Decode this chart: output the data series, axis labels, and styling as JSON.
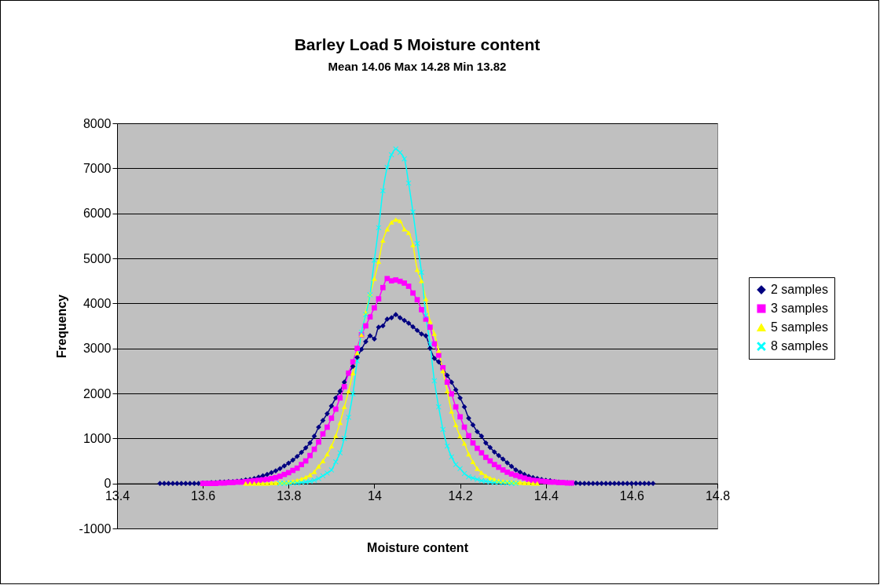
{
  "chart_data": {
    "type": "line",
    "title": "Barley Load 5 Moisture content",
    "subtitle": "Mean 14.06  Max 14.28  Min 13.82",
    "xlabel": "Moisture content",
    "ylabel": "Frequency",
    "x": [
      13.5,
      13.51,
      13.52,
      13.53,
      13.54,
      13.55,
      13.56,
      13.57,
      13.58,
      13.59,
      13.6,
      13.61,
      13.62,
      13.63,
      13.64,
      13.65,
      13.66,
      13.67,
      13.68,
      13.69,
      13.7,
      13.71,
      13.72,
      13.73,
      13.74,
      13.75,
      13.76,
      13.77,
      13.78,
      13.79,
      13.8,
      13.81,
      13.82,
      13.83,
      13.84,
      13.85,
      13.86,
      13.87,
      13.88,
      13.89,
      13.9,
      13.91,
      13.92,
      13.93,
      13.94,
      13.95,
      13.96,
      13.97,
      13.98,
      13.99,
      14,
      14.01,
      14.02,
      14.03,
      14.04,
      14.05,
      14.06,
      14.07,
      14.08,
      14.09,
      14.1,
      14.11,
      14.12,
      14.13,
      14.14,
      14.15,
      14.16,
      14.17,
      14.18,
      14.19,
      14.2,
      14.21,
      14.22,
      14.23,
      14.24,
      14.25,
      14.26,
      14.27,
      14.28,
      14.29,
      14.3,
      14.31,
      14.32,
      14.33,
      14.34,
      14.35,
      14.36,
      14.37,
      14.38,
      14.39,
      14.4,
      14.41,
      14.42,
      14.43,
      14.44,
      14.45,
      14.46,
      14.47,
      14.48,
      14.49,
      14.5,
      14.51,
      14.52,
      14.53,
      14.54,
      14.55,
      14.56,
      14.57,
      14.58,
      14.59,
      14.6,
      14.61,
      14.62,
      14.63,
      14.64,
      14.65
    ],
    "series": [
      {
        "name": "2 samples",
        "color": "#000080",
        "marker": "diamond",
        "values": [
          0,
          0,
          0,
          0,
          0,
          0,
          0,
          0,
          0,
          0,
          10,
          10,
          20,
          20,
          30,
          30,
          40,
          40,
          50,
          60,
          80,
          90,
          110,
          140,
          170,
          200,
          240,
          280,
          330,
          390,
          450,
          520,
          600,
          690,
          790,
          900,
          1050,
          1250,
          1400,
          1550,
          1720,
          1900,
          2050,
          2250,
          2450,
          2600,
          2800,
          2980,
          3150,
          3280,
          3210,
          3470,
          3500,
          3650,
          3680,
          3750,
          3680,
          3620,
          3560,
          3480,
          3400,
          3320,
          3280,
          3000,
          2780,
          2700,
          2550,
          2400,
          2250,
          2080,
          1900,
          1700,
          1450,
          1300,
          1150,
          1050,
          900,
          800,
          700,
          620,
          540,
          460,
          380,
          300,
          250,
          200,
          160,
          130,
          110,
          90,
          70,
          60,
          40,
          30,
          20,
          20,
          10,
          10,
          0,
          0,
          0,
          0,
          0,
          0,
          0,
          0,
          0,
          0,
          0,
          0,
          0,
          0,
          0,
          0,
          0,
          0
        ]
      },
      {
        "name": "3 samples",
        "color": "#ff00ff",
        "marker": "square",
        "values": [
          null,
          null,
          null,
          null,
          null,
          null,
          null,
          null,
          null,
          null,
          0,
          0,
          0,
          0,
          10,
          10,
          20,
          20,
          30,
          30,
          40,
          50,
          60,
          70,
          80,
          90,
          110,
          130,
          160,
          200,
          240,
          290,
          340,
          420,
          500,
          620,
          760,
          920,
          1100,
          1250,
          1450,
          1650,
          1900,
          2150,
          2450,
          2700,
          3000,
          3300,
          3500,
          3700,
          3900,
          4100,
          4350,
          4550,
          4500,
          4520,
          4490,
          4450,
          4380,
          4230,
          4080,
          3860,
          3650,
          3470,
          3100,
          2850,
          2570,
          2250,
          1990,
          1700,
          1480,
          1250,
          1060,
          900,
          780,
          680,
          580,
          500,
          420,
          360,
          300,
          250,
          210,
          180,
          150,
          120,
          90,
          70,
          60,
          50,
          40,
          30,
          30,
          20,
          20,
          10,
          10,
          null,
          null,
          null,
          null,
          null,
          null,
          null,
          null,
          null,
          null,
          null,
          null,
          null,
          null,
          null,
          null,
          null,
          null,
          null
        ]
      },
      {
        "name": "5 samples",
        "color": "#ffff00",
        "marker": "triangle",
        "values": [
          null,
          null,
          null,
          null,
          null,
          null,
          null,
          null,
          null,
          null,
          null,
          null,
          null,
          null,
          null,
          null,
          null,
          null,
          null,
          null,
          0,
          0,
          0,
          0,
          0,
          0,
          10,
          10,
          20,
          20,
          30,
          50,
          70,
          100,
          140,
          190,
          260,
          380,
          500,
          650,
          830,
          1060,
          1350,
          1700,
          2050,
          2450,
          2900,
          3300,
          3800,
          4200,
          4550,
          4930,
          5400,
          5650,
          5800,
          5860,
          5830,
          5650,
          5570,
          5300,
          4750,
          4500,
          4100,
          3600,
          3330,
          2950,
          2500,
          2050,
          1600,
          1300,
          1050,
          890,
          650,
          480,
          330,
          240,
          170,
          120,
          90,
          60,
          50,
          40,
          30,
          20,
          20,
          10,
          10,
          0,
          0,
          null,
          null,
          null,
          null,
          null,
          null,
          null,
          null,
          null,
          null,
          null,
          null,
          null,
          null,
          null,
          null,
          null,
          null,
          null,
          null,
          null,
          null,
          null,
          null,
          null,
          null,
          null
        ]
      },
      {
        "name": "8 samples",
        "color": "#00ffff",
        "marker": "cross",
        "values": [
          null,
          null,
          null,
          null,
          null,
          null,
          null,
          null,
          null,
          null,
          null,
          null,
          null,
          null,
          null,
          null,
          null,
          null,
          null,
          null,
          null,
          null,
          null,
          null,
          null,
          null,
          null,
          null,
          0,
          0,
          0,
          10,
          10,
          20,
          30,
          50,
          70,
          110,
          170,
          230,
          300,
          480,
          680,
          1000,
          1470,
          1990,
          2720,
          3360,
          3750,
          4190,
          4960,
          5680,
          6500,
          7020,
          7300,
          7430,
          7350,
          7210,
          6670,
          6030,
          5330,
          4690,
          3730,
          3090,
          2280,
          1700,
          1200,
          830,
          590,
          420,
          330,
          220,
          150,
          120,
          90,
          60,
          50,
          30,
          20,
          20,
          10,
          10,
          0,
          0,
          null,
          null,
          null,
          null,
          null,
          null,
          null,
          null,
          null,
          null,
          null,
          null,
          null,
          null,
          null,
          null,
          null,
          null,
          null,
          null,
          null,
          null,
          null,
          null,
          null,
          null,
          null,
          null,
          null,
          null,
          null,
          null
        ]
      }
    ],
    "xlim": [
      13.4,
      14.8
    ],
    "xticks": [
      13.4,
      13.6,
      13.8,
      14,
      14.2,
      14.4,
      14.6,
      14.8
    ],
    "ylim": [
      -1000,
      8000
    ],
    "yticks": [
      -1000,
      0,
      1000,
      2000,
      3000,
      4000,
      5000,
      6000,
      7000,
      8000
    ],
    "grid": "y",
    "legend": "right",
    "line_style": "solid"
  }
}
